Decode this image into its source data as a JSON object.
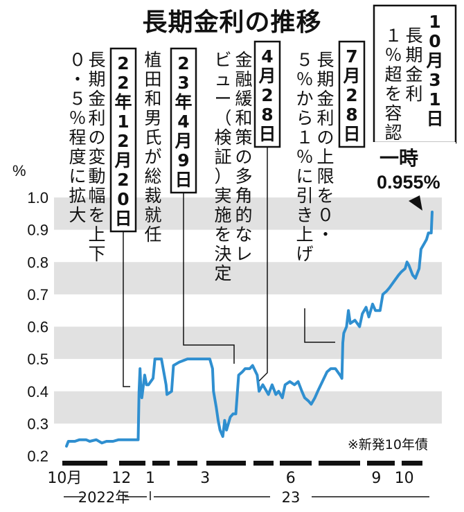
{
  "title": "長期金利の推移",
  "unit": "%",
  "source_note": "※新発10年債",
  "colors": {
    "line": "#2f8fd0",
    "band": "#e1e1e1",
    "text": "#111111",
    "highlight": "#000000"
  },
  "x_axis": {
    "tick_labels": [
      {
        "label": "10月",
        "date": "2022-10-01"
      },
      {
        "label": "12",
        "date": "2022-12-01"
      },
      {
        "label": "1",
        "date": "2023-01-01"
      },
      {
        "label": "3",
        "date": "2023-03-01"
      },
      {
        "label": "6",
        "date": "2023-06-01"
      },
      {
        "label": "9",
        "date": "2023-09-01"
      },
      {
        "label": "10",
        "date": "2023-10-01"
      }
    ],
    "year_labels": [
      {
        "label": "2022年",
        "date": "2022-11-28"
      },
      {
        "label": "23",
        "date": "2023-05-15"
      }
    ]
  },
  "annotations": [
    {
      "date_label": "22年12月20日",
      "text": "長期金利の変動幅を上下０・５％程度に拡大",
      "date": "2022-12-20",
      "value": 0.39
    },
    {
      "date_label": "23年4月9日",
      "text": "植田和男氏が総裁就任",
      "date": "2023-04-09",
      "value": 0.48
    },
    {
      "date_label": "4月28日",
      "text": "金融緩和策の多角的なレビュー（検証）実施を決定",
      "date": "2023-04-28",
      "value": 0.46
    },
    {
      "date_label": "7月28日",
      "text": "長期金利の上限を０・５％から１％に引き上げ",
      "date": "2023-07-28",
      "value": 0.48
    },
    {
      "date_label": "10月31日",
      "text": "長期金利１％超を容認",
      "date": "2023-10-31",
      "value": 0.955
    }
  ],
  "peak_label": {
    "line1": "一時",
    "line2": "0.955%"
  },
  "chart_data": {
    "type": "line",
    "title": "長期金利の推移",
    "xlabel": "",
    "ylabel": "%",
    "ylim": [
      0.2,
      1.0
    ],
    "xlim": [
      "2022-09-30",
      "2023-10-31"
    ],
    "y_ticks": [
      0.2,
      0.3,
      0.4,
      0.5,
      0.6,
      0.7,
      0.8,
      0.9,
      1.0
    ],
    "y_tick_labels": [
      "0.2",
      "0.3",
      "0.4",
      "0.5",
      "0.6",
      "0.7",
      "0.8",
      "0.9",
      "1.0"
    ],
    "grid": "alternating horizontal bands",
    "series": [
      {
        "name": "",
        "points": [
          [
            "2022-10-03",
            0.23
          ],
          [
            "2022-10-05",
            0.245
          ],
          [
            "2022-10-12",
            0.245
          ],
          [
            "2022-10-17",
            0.25
          ],
          [
            "2022-10-24",
            0.25
          ],
          [
            "2022-10-28",
            0.245
          ],
          [
            "2022-11-04",
            0.25
          ],
          [
            "2022-11-10",
            0.24
          ],
          [
            "2022-11-15",
            0.245
          ],
          [
            "2022-11-22",
            0.245
          ],
          [
            "2022-11-28",
            0.25
          ],
          [
            "2022-12-05",
            0.25
          ],
          [
            "2022-12-12",
            0.25
          ],
          [
            "2022-12-19",
            0.25
          ],
          [
            "2022-12-20",
            0.4
          ],
          [
            "2022-12-21",
            0.47
          ],
          [
            "2022-12-22",
            0.4
          ],
          [
            "2022-12-23",
            0.38
          ],
          [
            "2022-12-26",
            0.45
          ],
          [
            "2022-12-28",
            0.42
          ],
          [
            "2022-12-30",
            0.42
          ],
          [
            "2023-01-04",
            0.44
          ],
          [
            "2023-01-06",
            0.5
          ],
          [
            "2023-01-10",
            0.5
          ],
          [
            "2023-01-13",
            0.5
          ],
          [
            "2023-01-18",
            0.42
          ],
          [
            "2023-01-19",
            0.39
          ],
          [
            "2023-01-24",
            0.4
          ],
          [
            "2023-01-26",
            0.48
          ],
          [
            "2023-02-01",
            0.49
          ],
          [
            "2023-02-10",
            0.5
          ],
          [
            "2023-02-20",
            0.5
          ],
          [
            "2023-02-28",
            0.5
          ],
          [
            "2023-03-06",
            0.5
          ],
          [
            "2023-03-09",
            0.47
          ],
          [
            "2023-03-10",
            0.4
          ],
          [
            "2023-03-13",
            0.35
          ],
          [
            "2023-03-15",
            0.31
          ],
          [
            "2023-03-17",
            0.28
          ],
          [
            "2023-03-20",
            0.26
          ],
          [
            "2023-03-22",
            0.31
          ],
          [
            "2023-03-24",
            0.28
          ],
          [
            "2023-03-28",
            0.32
          ],
          [
            "2023-03-31",
            0.33
          ],
          [
            "2023-04-03",
            0.33
          ],
          [
            "2023-04-06",
            0.45
          ],
          [
            "2023-04-10",
            0.46
          ],
          [
            "2023-04-13",
            0.47
          ],
          [
            "2023-04-18",
            0.47
          ],
          [
            "2023-04-21",
            0.48
          ],
          [
            "2023-04-26",
            0.45
          ],
          [
            "2023-04-28",
            0.4
          ],
          [
            "2023-05-02",
            0.42
          ],
          [
            "2023-05-08",
            0.39
          ],
          [
            "2023-05-12",
            0.42
          ],
          [
            "2023-05-16",
            0.39
          ],
          [
            "2023-05-19",
            0.4
          ],
          [
            "2023-05-23",
            0.38
          ],
          [
            "2023-05-26",
            0.42
          ],
          [
            "2023-05-31",
            0.43
          ],
          [
            "2023-06-05",
            0.42
          ],
          [
            "2023-06-09",
            0.43
          ],
          [
            "2023-06-13",
            0.4
          ],
          [
            "2023-06-16",
            0.38
          ],
          [
            "2023-06-20",
            0.37
          ],
          [
            "2023-06-23",
            0.36
          ],
          [
            "2023-06-27",
            0.38
          ],
          [
            "2023-06-30",
            0.4
          ],
          [
            "2023-07-05",
            0.43
          ],
          [
            "2023-07-10",
            0.46
          ],
          [
            "2023-07-14",
            0.47
          ],
          [
            "2023-07-19",
            0.47
          ],
          [
            "2023-07-24",
            0.45
          ],
          [
            "2023-07-26",
            0.44
          ],
          [
            "2023-07-27",
            0.55
          ],
          [
            "2023-07-28",
            0.58
          ],
          [
            "2023-07-31",
            0.6
          ],
          [
            "2023-08-02",
            0.65
          ],
          [
            "2023-08-04",
            0.61
          ],
          [
            "2023-08-09",
            0.62
          ],
          [
            "2023-08-14",
            0.6
          ],
          [
            "2023-08-17",
            0.64
          ],
          [
            "2023-08-21",
            0.66
          ],
          [
            "2023-08-24",
            0.63
          ],
          [
            "2023-08-28",
            0.67
          ],
          [
            "2023-08-31",
            0.65
          ],
          [
            "2023-09-05",
            0.65
          ],
          [
            "2023-09-08",
            0.7
          ],
          [
            "2023-09-12",
            0.71
          ],
          [
            "2023-09-15",
            0.72
          ],
          [
            "2023-09-20",
            0.74
          ],
          [
            "2023-09-25",
            0.76
          ],
          [
            "2023-09-28",
            0.77
          ],
          [
            "2023-10-02",
            0.78
          ],
          [
            "2023-10-04",
            0.8
          ],
          [
            "2023-10-06",
            0.79
          ],
          [
            "2023-10-10",
            0.76
          ],
          [
            "2023-10-13",
            0.75
          ],
          [
            "2023-10-17",
            0.78
          ],
          [
            "2023-10-19",
            0.84
          ],
          [
            "2023-10-23",
            0.86
          ],
          [
            "2023-10-25",
            0.87
          ],
          [
            "2023-10-27",
            0.89
          ],
          [
            "2023-10-30",
            0.89
          ],
          [
            "2023-10-31",
            0.955
          ]
        ]
      }
    ]
  }
}
